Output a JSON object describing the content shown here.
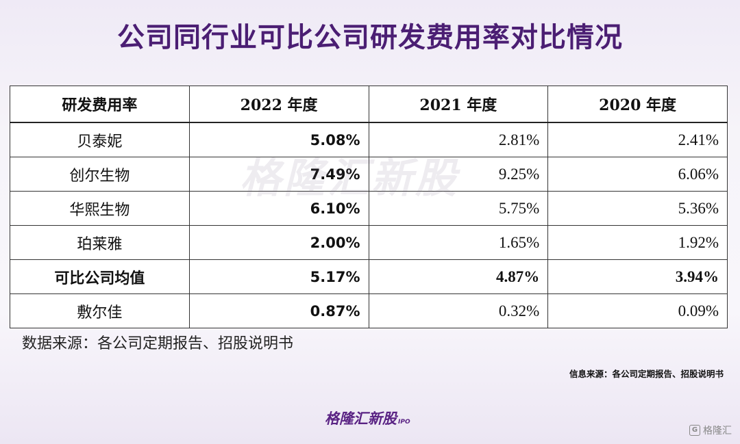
{
  "title": "公司同行业可比公司研发费用率对比情况",
  "table": {
    "headers": [
      "研发费用率",
      "2022 年度",
      "2021 年度",
      "2020 年度"
    ],
    "rows": [
      {
        "company": "贝泰妮",
        "y2022": "5.08%",
        "y2021": "2.81%",
        "y2020": "2.41%"
      },
      {
        "company": "创尔生物",
        "y2022": "7.49%",
        "y2021": "9.25%",
        "y2020": "6.06%"
      },
      {
        "company": "华熙生物",
        "y2022": "6.10%",
        "y2021": "5.75%",
        "y2020": "5.36%"
      },
      {
        "company": "珀莱雅",
        "y2022": "2.00%",
        "y2021": "1.65%",
        "y2020": "1.92%"
      },
      {
        "company": "可比公司均值",
        "y2022": "5.17%",
        "y2021": "4.87%",
        "y2020": "3.94%"
      },
      {
        "company": "敷尔佳",
        "y2022": "0.87%",
        "y2021": "0.32%",
        "y2020": "0.09%"
      }
    ]
  },
  "watermark": "格隆汇新股",
  "source_note": "数据来源：各公司定期报告、招股说明书",
  "source_small": "信息来源：各公司定期报告、招股说明书",
  "logo": {
    "text": "格隆汇新股",
    "suffix": "IPO"
  },
  "corner_brand": {
    "icon": "G",
    "text": "格隆汇"
  },
  "colors": {
    "title": "#4b1e73",
    "logo": "#5a2384"
  }
}
